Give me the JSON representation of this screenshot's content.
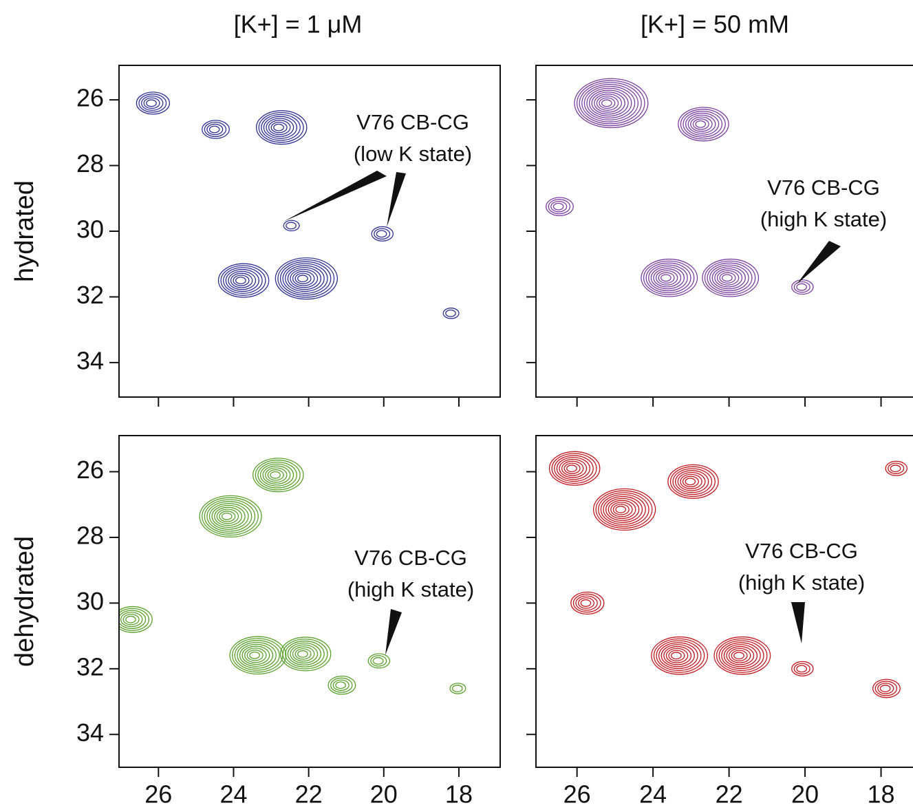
{
  "chart_data": [
    {
      "type": "contour",
      "title": "[K+] = 1 μM",
      "ylabel": "hydrated",
      "color": "#2e3192",
      "xlim": [
        27.05,
        16.9
      ],
      "ylim": [
        24.95,
        35.05
      ],
      "xticks": [
        26,
        24,
        22,
        20,
        18
      ],
      "yticks": [
        26,
        28,
        30,
        32,
        34
      ],
      "xtick_labels": false,
      "ytick_labels": true,
      "peaks": {
        "x": [
          22.81,
          23.82,
          22.17,
          20.07,
          22.48,
          24.52,
          18.23,
          26.2
        ],
        "y": [
          26.84,
          31.5,
          31.44,
          30.08,
          29.83,
          26.9,
          32.5,
          26.1
        ],
        "levels": [
          8,
          8,
          10,
          3,
          2,
          4,
          2,
          5
        ]
      },
      "annotation": [
        "V76 CB-CG",
        "(low K state)"
      ]
    },
    {
      "type": "contour",
      "title": "[K+] = 50 mM",
      "color": "#7b3fa0",
      "xlim": [
        27.08,
        17.05
      ],
      "ylim": [
        24.95,
        35.05
      ],
      "xticks": [
        26,
        24,
        22,
        20,
        18
      ],
      "yticks": [
        26,
        28,
        30,
        32,
        34
      ],
      "xtick_labels": false,
      "ytick_labels": false,
      "peaks": {
        "x": [
          23.67,
          22.06,
          20.1,
          22.76,
          25.23,
          26.5
        ],
        "y": [
          31.42,
          31.42,
          31.7,
          26.74,
          26.1,
          29.25
        ],
        "levels": [
          9,
          9,
          3,
          8,
          12,
          4
        ]
      },
      "annotation": [
        "V76 CB-CG",
        "(high K state)"
      ]
    },
    {
      "type": "contour",
      "ylabel": "dehydrated",
      "color": "#5aa02c",
      "xlim": [
        27.05,
        16.9
      ],
      "ylim": [
        24.9,
        35.0
      ],
      "xticks": [
        26,
        24,
        22,
        20,
        18
      ],
      "yticks": [
        26,
        28,
        30,
        32,
        34
      ],
      "xtick_labels": true,
      "ytick_labels": true,
      "peaks": {
        "x": [
          23.45,
          22.17,
          21.16,
          20.16,
          18.05,
          24.19,
          22.9,
          26.75
        ],
        "y": [
          31.59,
          31.55,
          32.5,
          31.76,
          32.6,
          27.36,
          26.1,
          30.5
        ],
        "levels": [
          9,
          8,
          4,
          3,
          2,
          10,
          8,
          6
        ]
      },
      "annotation": [
        "V76 CB-CG",
        "(high K state)"
      ]
    },
    {
      "type": "contour",
      "color": "#c0181f",
      "xlim": [
        27.08,
        17.05
      ],
      "ylim": [
        24.9,
        35.0
      ],
      "xticks": [
        26,
        24,
        22,
        20,
        18
      ],
      "yticks": [
        26,
        28,
        30,
        32,
        34
      ],
      "xtick_labels": true,
      "ytick_labels": false,
      "peaks": {
        "x": [
          23.4,
          21.75,
          20.1,
          17.9,
          17.63,
          24.86,
          26.15,
          23.03,
          25.78
        ],
        "y": [
          31.6,
          31.6,
          32.0,
          32.6,
          25.9,
          27.15,
          25.9,
          26.3,
          30.0
        ],
        "levels": [
          9,
          9,
          3,
          4,
          3,
          10,
          8,
          8,
          5
        ]
      },
      "annotation": [
        "V76 CB-CG",
        "(high K state)"
      ]
    }
  ]
}
